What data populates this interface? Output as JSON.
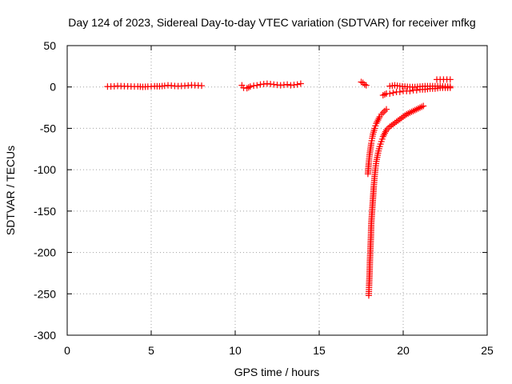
{
  "chart_data": {
    "type": "scatter",
    "title": "Day 124 of 2023, Sidereal Day-to-day VTEC variation (SDTVAR) for receiver mfkg",
    "xlabel": "GPS time / hours",
    "ylabel": "SDTVAR / TECUs",
    "xlim": [
      0,
      25
    ],
    "ylim": [
      -300,
      50
    ],
    "xticks": [
      0,
      5,
      10,
      15,
      20,
      25
    ],
    "yticks": [
      50,
      0,
      -50,
      -100,
      -150,
      -200,
      -250,
      -300
    ],
    "grid": true,
    "marker": "+",
    "color": "#ff0000",
    "series": [
      {
        "name": "SDTVAR",
        "segments": [
          {
            "x": [
              2.4,
              2.6,
              2.8,
              3.0,
              3.2,
              3.4,
              3.6,
              3.8,
              4.0,
              4.2,
              4.5,
              4.8,
              5.0,
              5.2,
              5.5,
              5.8,
              6.0,
              6.2,
              6.4,
              6.6,
              6.8,
              7.0,
              7.2,
              7.4,
              7.6,
              7.8,
              8.0
            ],
            "y": [
              0.5,
              0.6,
              0.8,
              1.2,
              1.0,
              0.9,
              0.8,
              0.6,
              0.5,
              0.6,
              0.1,
              0.4,
              0.6,
              0.9,
              0.8,
              1.4,
              2.0,
              1.6,
              1.2,
              1.0,
              1.2,
              1.4,
              1.8,
              2.2,
              2.0,
              1.8,
              1.5
            ]
          },
          {
            "x": [
              10.4,
              10.5,
              10.7,
              10.9,
              11.1,
              11.3,
              11.5,
              11.7,
              11.9,
              12.1,
              12.3,
              12.5,
              12.7,
              12.9,
              13.1,
              13.3,
              13.5,
              13.7,
              13.9
            ],
            "y": [
              2.0,
              -1.0,
              -1.5,
              0.5,
              1.5,
              2.0,
              3.0,
              3.5,
              4.0,
              3.5,
              3.0,
              2.5,
              2.0,
              2.5,
              3.0,
              2.0,
              2.5,
              3.0,
              4.0
            ]
          },
          {
            "x": [
              17.5,
              17.6,
              17.7,
              17.8
            ],
            "y": [
              6.0,
              5.0,
              3.0,
              2.0
            ]
          },
          {
            "x": [
              18.8,
              19.0,
              19.2,
              19.4,
              19.6,
              19.8,
              20.0,
              20.2,
              20.4,
              20.6,
              20.8,
              21.0,
              21.3,
              21.6,
              21.9,
              22.2,
              22.5,
              22.8
            ],
            "y": [
              -10,
              -8,
              -8,
              -7,
              -6,
              -6,
              -5,
              -5,
              -5,
              -4,
              -4,
              -3,
              -3,
              -2,
              -2,
              -1,
              -1,
              -1
            ]
          },
          {
            "x": [
              19.2,
              19.5,
              19.8,
              20.1,
              20.4,
              20.7,
              21.0,
              21.3,
              21.6,
              21.9,
              22.2,
              22.5,
              22.8
            ],
            "y": [
              1.0,
              2.0,
              1.0,
              0.5,
              0.0,
              0.0,
              0.5,
              1.0,
              1.0,
              1.0,
              1.0,
              0.5,
              0.5
            ]
          },
          {
            "x": [
              22.0,
              22.2,
              22.4,
              22.6,
              22.8
            ],
            "y": [
              9,
              9,
              9,
              9,
              9
            ]
          },
          {
            "x": [
              17.95,
              17.97,
              18.0,
              18.02,
              18.05,
              18.08,
              18.1,
              18.15,
              18.2,
              18.25,
              18.3,
              18.35,
              18.4,
              18.5,
              18.6,
              18.7,
              18.8,
              18.9,
              19.0,
              19.2,
              19.4,
              19.6,
              19.8,
              20.0,
              20.2,
              20.4,
              20.6,
              20.8,
              21.0,
              21.2
            ],
            "y": [
              -252,
              -240,
              -225,
              -210,
              -195,
              -180,
              -165,
              -150,
              -135,
              -120,
              -108,
              -98,
              -90,
              -80,
              -72,
              -66,
              -60,
              -56,
              -52,
              -48,
              -45,
              -42,
              -39,
              -36,
              -33,
              -31,
              -29,
              -27,
              -25,
              -23
            ]
          },
          {
            "x": [
              17.9,
              17.95,
              18.0,
              18.05,
              18.1,
              18.15,
              18.2,
              18.3,
              18.4,
              18.5,
              18.6,
              18.7,
              18.8,
              18.9,
              19.0
            ],
            "y": [
              -105,
              -92,
              -82,
              -75,
              -68,
              -62,
              -57,
              -50,
              -44,
              -40,
              -36,
              -33,
              -31,
              -29,
              -27
            ]
          }
        ]
      }
    ]
  }
}
